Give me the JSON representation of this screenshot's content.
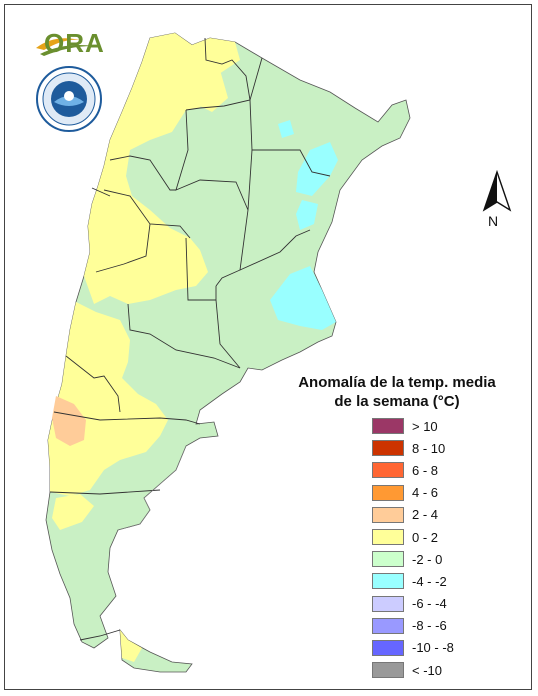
{
  "logo": {
    "text": "ORA"
  },
  "north_arrow": {
    "label": "N"
  },
  "legend": {
    "title_line1": "Anomalía de la temp. media",
    "title_line2": "de la semana (°C)",
    "items": [
      {
        "label": "> 10",
        "color": "#9b3766"
      },
      {
        "label": "8 - 10",
        "color": "#cc3300"
      },
      {
        "label": "6 - 8",
        "color": "#ff6633"
      },
      {
        "label": "4 - 6",
        "color": "#ff9933"
      },
      {
        "label": "2 - 4",
        "color": "#ffcc99"
      },
      {
        "label": "0 - 2",
        "color": "#ffff99"
      },
      {
        "label": "-2 - 0",
        "color": "#ccffcc"
      },
      {
        "label": "-4 - -2",
        "color": "#99ffff"
      },
      {
        "label": "-6 - -4",
        "color": "#ccccff"
      },
      {
        "label": "-8 - -6",
        "color": "#9999ff"
      },
      {
        "label": "-10 - -8",
        "color": "#6666ff"
      },
      {
        "label": "< -10",
        "color": "#999999"
      }
    ]
  },
  "map_colors": {
    "base": "#c9f0c4",
    "warm": "#ffff99",
    "warmer": "#ffcc99",
    "cool": "#99ffff",
    "border": "#333333"
  }
}
